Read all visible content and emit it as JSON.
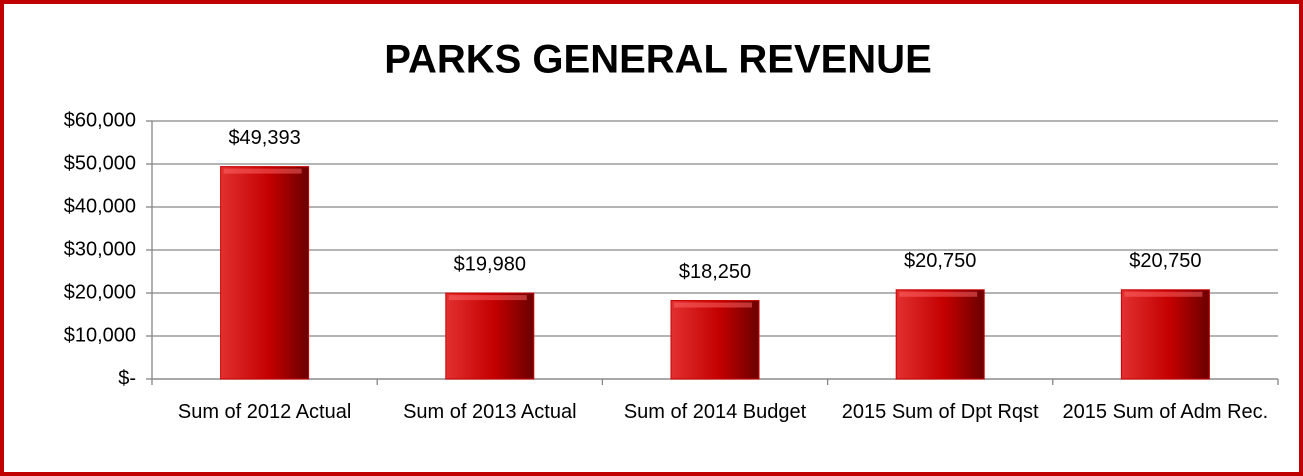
{
  "chart_data": {
    "type": "bar",
    "title": "PARKS GENERAL REVENUE",
    "categories": [
      "Sum of 2012 Actual",
      "Sum of 2013 Actual",
      "Sum of 2014 Budget",
      "2015 Sum of Dpt Rqst",
      "2015 Sum of Adm Rec."
    ],
    "values": [
      49393,
      19980,
      18250,
      20750,
      20750
    ],
    "value_labels": [
      "$49,393",
      "$19,980",
      "$18,250",
      "$20,750",
      "$20,750"
    ],
    "color": "#cc0000",
    "ylim": [
      0,
      60000
    ],
    "yticks": [
      {
        "value": 0,
        "label": "$-"
      },
      {
        "value": 10000,
        "label": "$10,000"
      },
      {
        "value": 20000,
        "label": "$20,000"
      },
      {
        "value": 30000,
        "label": "$30,000"
      },
      {
        "value": 40000,
        "label": "$40,000"
      },
      {
        "value": 50000,
        "label": "$50,000"
      },
      {
        "value": 60000,
        "label": "$60,000"
      }
    ],
    "grid": true
  }
}
